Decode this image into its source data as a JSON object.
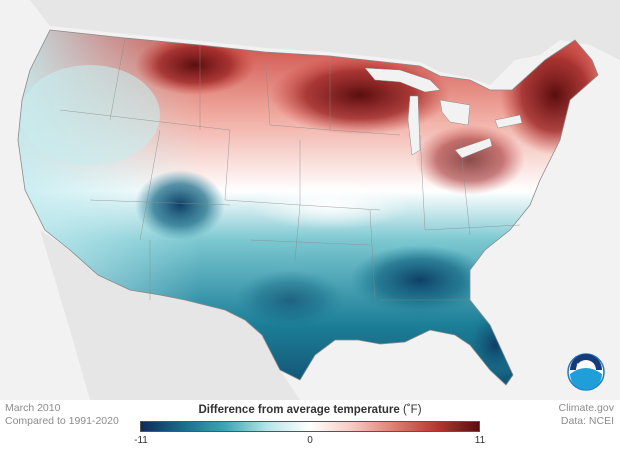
{
  "caption": {
    "title": "March 2010",
    "subtitle": "Compared to 1991-2020"
  },
  "credits": {
    "site": "Climate.gov",
    "source": "Data: NCEI"
  },
  "legend": {
    "title": "Difference from average temperature",
    "unit": "(˚F)",
    "ticks": [
      "-11",
      "0",
      "11"
    ],
    "colors": [
      "#0f2a5c",
      "#186e8a",
      "#3aa8b5",
      "#b6e5ea",
      "#ffffff",
      "#f7c9c2",
      "#e07c70",
      "#b23a32",
      "#5a0e0e"
    ]
  },
  "logo": {
    "text": "NOAA",
    "icon": "noaa-logo-icon"
  },
  "map": {
    "region": "contiguous-united-states",
    "colors": {
      "land_other": "#e6e6e6",
      "water": "#f2f2f2",
      "border": "#9a9a9a"
    }
  }
}
